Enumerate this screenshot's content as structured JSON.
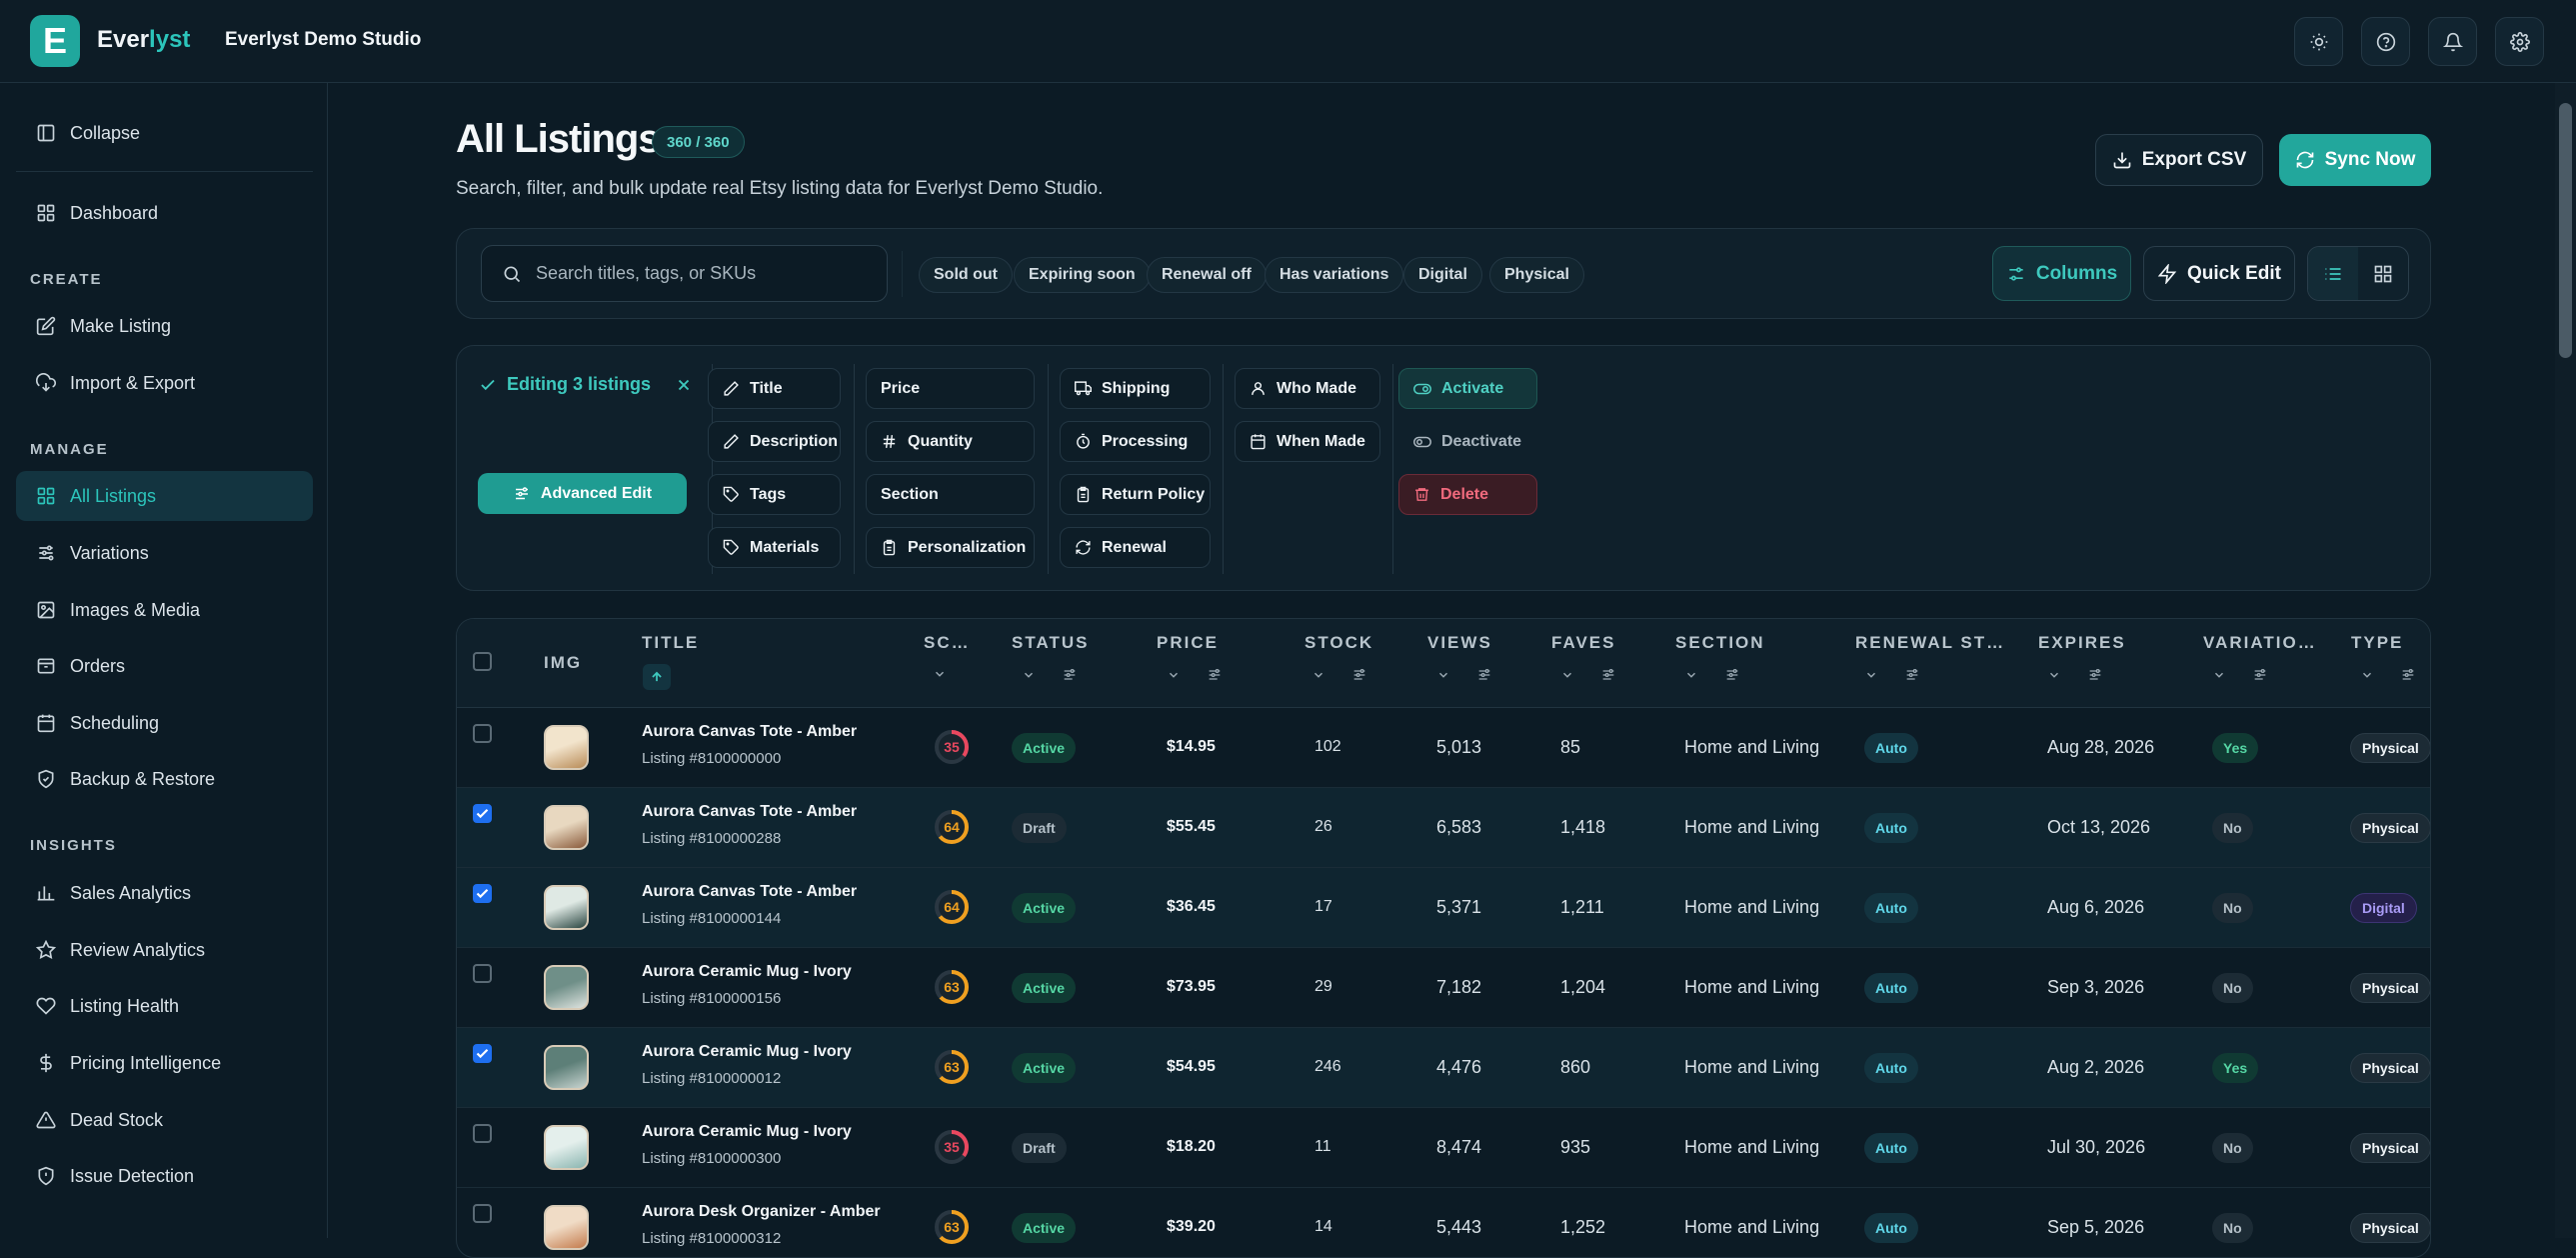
{
  "app": {
    "logo_letter": "E",
    "brand_part1": "Ever",
    "brand_part2": "lyst",
    "studio": "Everlyst Demo Studio"
  },
  "topbar_icons": [
    "sun-icon",
    "help-icon",
    "bell-icon",
    "gear-icon"
  ],
  "sidebar": {
    "collapse": "Collapse",
    "dashboard": "Dashboard",
    "sections": {
      "create": "CREATE",
      "manage": "MANAGE",
      "insights": "INSIGHTS"
    },
    "create": [
      "Make Listing",
      "Import & Export"
    ],
    "manage": [
      "All Listings",
      "Variations",
      "Images & Media",
      "Orders",
      "Scheduling",
      "Backup & Restore"
    ],
    "insights": [
      "Sales Analytics",
      "Review Analytics",
      "Listing Health",
      "Pricing Intelligence",
      "Dead Stock",
      "Issue Detection"
    ]
  },
  "page": {
    "title": "All Listings",
    "count_badge": "360 / 360",
    "subtitle": "Search, filter, and bulk update real Etsy listing data for Everlyst Demo Studio.",
    "export_label": "Export CSV",
    "sync_label": "Sync Now"
  },
  "toolbar": {
    "search_placeholder": "Search titles, tags, or SKUs",
    "filters": [
      "Sold out",
      "Expiring soon",
      "Renewal off",
      "Has variations",
      "Digital",
      "Physical"
    ],
    "columns_label": "Columns",
    "quick_edit_label": "Quick Edit"
  },
  "edit_panel": {
    "editing_label": "Editing 3 listings",
    "advanced_label": "Advanced Edit",
    "col1": [
      "Title",
      "Description",
      "Tags",
      "Materials"
    ],
    "col2": [
      "Price",
      "Quantity",
      "Section",
      "Personalization"
    ],
    "col3": [
      "Shipping",
      "Processing",
      "Return Policy",
      "Renewal"
    ],
    "col4": [
      "Who Made",
      "When Made"
    ],
    "actions": {
      "activate": "Activate",
      "deactivate": "Deactivate",
      "delete": "Delete"
    }
  },
  "table": {
    "headers": {
      "img": "IMG",
      "title": "TITLE",
      "score": "SC…",
      "status": "STATUS",
      "price": "PRICE",
      "stock": "STOCK",
      "views": "VIEWS",
      "faves": "FAVES",
      "section": "SECTION",
      "renewal": "RENEWAL ST…",
      "expires": "EXPIRES",
      "variations": "VARIATIO…",
      "type": "TYPE"
    },
    "rows": [
      {
        "title": "Aurora Canvas Tote - Amber",
        "id": "Listing #8100000000",
        "score": "35",
        "status": "Active",
        "price": "$14.95",
        "stock": "102",
        "views": "5,013",
        "faves": "85",
        "section": "Home and Living",
        "renewal": "Auto",
        "expires": "Aug 28, 2026",
        "variations": "Yes",
        "type": "Physical",
        "checked": false
      },
      {
        "title": "Aurora Canvas Tote - Amber",
        "id": "Listing #8100000288",
        "score": "64",
        "status": "Draft",
        "price": "$55.45",
        "stock": "26",
        "views": "6,583",
        "faves": "1,418",
        "section": "Home and Living",
        "renewal": "Auto",
        "expires": "Oct 13, 2026",
        "variations": "No",
        "type": "Physical",
        "checked": true
      },
      {
        "title": "Aurora Canvas Tote - Amber",
        "id": "Listing #8100000144",
        "score": "64",
        "status": "Active",
        "price": "$36.45",
        "stock": "17",
        "views": "5,371",
        "faves": "1,211",
        "section": "Home and Living",
        "renewal": "Auto",
        "expires": "Aug 6, 2026",
        "variations": "No",
        "type": "Digital",
        "checked": true
      },
      {
        "title": "Aurora Ceramic Mug - Ivory",
        "id": "Listing #8100000156",
        "score": "63",
        "status": "Active",
        "price": "$73.95",
        "stock": "29",
        "views": "7,182",
        "faves": "1,204",
        "section": "Home and Living",
        "renewal": "Auto",
        "expires": "Sep 3, 2026",
        "variations": "No",
        "type": "Physical",
        "checked": false
      },
      {
        "title": "Aurora Ceramic Mug - Ivory",
        "id": "Listing #8100000012",
        "score": "63",
        "status": "Active",
        "price": "$54.95",
        "stock": "246",
        "views": "4,476",
        "faves": "860",
        "section": "Home and Living",
        "renewal": "Auto",
        "expires": "Aug 2, 2026",
        "variations": "Yes",
        "type": "Physical",
        "checked": true
      },
      {
        "title": "Aurora Ceramic Mug - Ivory",
        "id": "Listing #8100000300",
        "score": "35",
        "status": "Draft",
        "price": "$18.20",
        "stock": "11",
        "views": "8,474",
        "faves": "935",
        "section": "Home and Living",
        "renewal": "Auto",
        "expires": "Jul 30, 2026",
        "variations": "No",
        "type": "Physical",
        "checked": false
      },
      {
        "title": "Aurora Desk Organizer - Amber",
        "id": "Listing #8100000312",
        "score": "63",
        "status": "Active",
        "price": "$39.20",
        "stock": "14",
        "views": "5,443",
        "faves": "1,252",
        "section": "Home and Living",
        "renewal": "Auto",
        "expires": "Sep 5, 2026",
        "variations": "No",
        "type": "Physical",
        "checked": false
      }
    ]
  },
  "colors": {
    "accent": "#22a79c",
    "bg": "#0c1b25",
    "danger": "#f06a7d",
    "score_low": "#e8485f",
    "score_mid": "#f0a020"
  }
}
